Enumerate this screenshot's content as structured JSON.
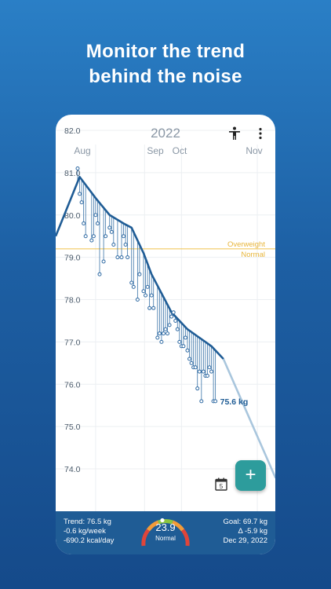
{
  "headline": {
    "line1": "Monitor the trend",
    "line2": "behind the noise"
  },
  "chart_data": {
    "type": "line",
    "year_label": "2022",
    "x_ticks": [
      "Aug",
      "Sep",
      "Oct",
      "Nov"
    ],
    "y_ticks": [
      "82.0",
      "81.0",
      "80.0",
      "79.0",
      "78.0",
      "77.0",
      "76.0",
      "75.0",
      "74.0"
    ],
    "ylim": [
      73.5,
      82.0
    ],
    "xlim": [
      0,
      110
    ],
    "threshold": {
      "value": 79.2,
      "above_label": "Overweight",
      "below_label": "Normal"
    },
    "series": [
      {
        "x": [
          0,
          12,
          20,
          27,
          34,
          38,
          44,
          48,
          58,
          66,
          78,
          84
        ],
        "y": [
          79.5,
          80.9,
          80.4,
          80.0,
          79.8,
          79.7,
          79.1,
          78.6,
          77.7,
          77.3,
          76.9,
          76.6
        ]
      },
      {
        "x": [
          11,
          12,
          13,
          14,
          15,
          18,
          19,
          20,
          21,
          22,
          24,
          25,
          27,
          28,
          29,
          31,
          33,
          34,
          35,
          36,
          38,
          39,
          41,
          42,
          44,
          45,
          46,
          47,
          48,
          49,
          51,
          52,
          53,
          54,
          55,
          56,
          57,
          58,
          59,
          60,
          61,
          62,
          63,
          64,
          65,
          66,
          67,
          68,
          69,
          70,
          71,
          72,
          73,
          74,
          75,
          76,
          77,
          78,
          79,
          80
        ],
        "y": [
          81.1,
          80.5,
          80.3,
          79.8,
          79.5,
          79.4,
          79.5,
          80.0,
          79.8,
          78.6,
          78.9,
          79.5,
          79.7,
          79.6,
          79.3,
          79.0,
          79.0,
          79.5,
          79.3,
          79.0,
          78.4,
          78.3,
          78.0,
          78.6,
          78.2,
          78.1,
          78.3,
          77.8,
          78.1,
          77.8,
          77.1,
          77.2,
          77.0,
          77.2,
          77.3,
          77.2,
          77.4,
          77.6,
          77.7,
          77.5,
          77.3,
          77.0,
          76.9,
          76.9,
          77.1,
          76.8,
          76.6,
          76.5,
          76.4,
          76.4,
          75.9,
          76.3,
          75.6,
          76.3,
          76.2,
          76.2,
          76.4,
          76.3,
          75.6,
          75.6
        ],
        "style": "points"
      }
    ],
    "last_value_label": "75.6 kg",
    "grid": true
  },
  "toolbar": {
    "person_icon": "accessibility-icon",
    "menu_icon": "more-vert-icon"
  },
  "calendar": {
    "day": "5"
  },
  "fab": {
    "label": "+"
  },
  "summary": {
    "trend": "Trend: 76.5 kg",
    "rate": "-0.6 kg/week",
    "kcal": "-690.2 kcal/day",
    "bmi": "23.9",
    "bmi_category": "Normal",
    "goal": "Goal: 69.7 kg",
    "delta": "Δ -5.9 kg",
    "goal_date": "Dec 29, 2022"
  },
  "colors": {
    "trend_line": "#1f5c95",
    "projection": "#a9c6dd",
    "threshold": "#f0c24a",
    "fab": "#2d9c9c"
  }
}
